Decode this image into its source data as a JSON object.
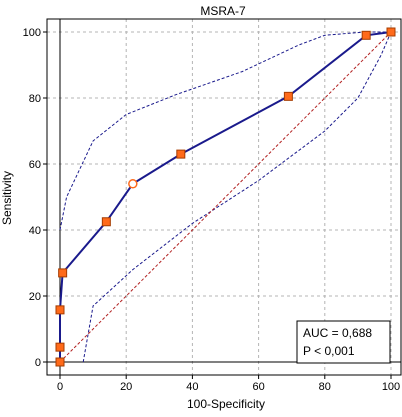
{
  "chart_data": {
    "type": "line",
    "title": "MSRA-7",
    "xlabel": "100-Specificity",
    "ylabel": "Sensitivity",
    "xlim": [
      0,
      100
    ],
    "ylim": [
      0,
      100
    ],
    "xticks": [
      0,
      20,
      40,
      60,
      80,
      100
    ],
    "yticks": [
      0,
      20,
      40,
      60,
      80,
      100
    ],
    "grid": true,
    "series": [
      {
        "role": "roc-curve",
        "color": "#1a1a8c",
        "x": [
          0,
          0,
          0,
          0.8,
          14,
          22,
          36.5,
          69,
          92.5,
          100
        ],
        "y": [
          0,
          4.5,
          15.8,
          27,
          42.5,
          54,
          63,
          80.5,
          99,
          100
        ],
        "markers": [
          "square",
          "square",
          "square",
          "square",
          "square",
          "circle",
          "square",
          "square",
          "square",
          "square"
        ]
      },
      {
        "role": "ci-upper",
        "color": "#1a1a8c",
        "style": "dashed",
        "x": [
          0,
          2,
          10,
          20,
          35,
          55,
          72,
          80,
          92,
          100
        ],
        "y": [
          40,
          50,
          67,
          75,
          81,
          88,
          96,
          99,
          100,
          100
        ]
      },
      {
        "role": "ci-lower",
        "color": "#1a1a8c",
        "style": "dashed",
        "x": [
          7,
          10,
          22,
          40,
          60,
          80,
          90,
          97,
          100
        ],
        "y": [
          0,
          17,
          28,
          42,
          55,
          70,
          80,
          93,
          100
        ]
      },
      {
        "role": "reference-diagonal",
        "color": "#b22222",
        "style": "dashed",
        "x": [
          0,
          100
        ],
        "y": [
          0,
          100
        ]
      }
    ],
    "annotation": {
      "auc": "AUC = 0,688",
      "p": "P < 0,001"
    },
    "colors": {
      "marker_fill": "#ff6a1a",
      "marker_stroke": "#a63c00",
      "grid": "#b4b4b4"
    }
  }
}
